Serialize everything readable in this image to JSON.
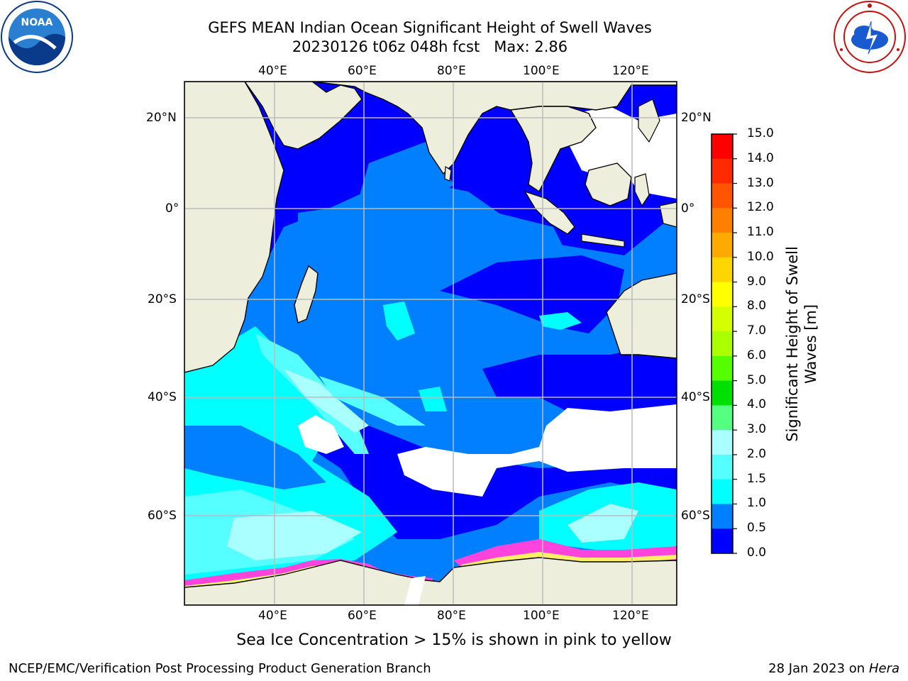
{
  "title": {
    "line1": "GEFS MEAN Indian Ocean Significant Height of Swell Waves",
    "line2": "20230126 t06z 048h fcst   Max: 2.86"
  },
  "axes": {
    "lon_labels": [
      "40°E",
      "60°E",
      "80°E",
      "100°E",
      "120°E"
    ],
    "lat_labels": [
      "20°N",
      "0°",
      "20°S",
      "40°S",
      "60°S"
    ]
  },
  "colorbar": {
    "label_line1": "Significant Height of Swell",
    "label_line2": "Waves [m]",
    "ticks": [
      "15.0",
      "14.0",
      "13.0",
      "12.0",
      "11.0",
      "10.0",
      "9.0",
      "8.0",
      "7.0",
      "6.0",
      "5.0",
      "4.0",
      "3.0",
      "2.0",
      "1.5",
      "1.0",
      "0.5",
      "0.0"
    ],
    "colors": [
      "#ff0000",
      "#ff2a00",
      "#ff5500",
      "#ff8000",
      "#ffaa00",
      "#ffd500",
      "#ffff00",
      "#d5ff00",
      "#aaff00",
      "#55ff00",
      "#00e000",
      "#55ff80",
      "#aaffff",
      "#55ffff",
      "#00ffff",
      "#0080ff",
      "#0000ff"
    ]
  },
  "map_colors": {
    "land": "#eeeedd",
    "ocean_0_05": "#0000ff",
    "ocean_05_1": "#0080ff",
    "ocean_1_15": "#00ffff",
    "ocean_15_2": "#55ffff",
    "ocean_2_3": "#aaffff",
    "no_data": "#ffffff",
    "ice": "#ff44dd",
    "grid": "#bbbbbb"
  },
  "caption": "Sea Ice Concentration > 15% is shown in pink to yellow",
  "footer": {
    "left": "NCEP/EMC/Verification Post Processing Product Generation Branch",
    "right_date": "28 Jan 2023 on ",
    "right_machine": "Hera"
  },
  "logos": {
    "noaa": "NOAA",
    "nws": "NATIONAL WEATHER SERVICE"
  }
}
